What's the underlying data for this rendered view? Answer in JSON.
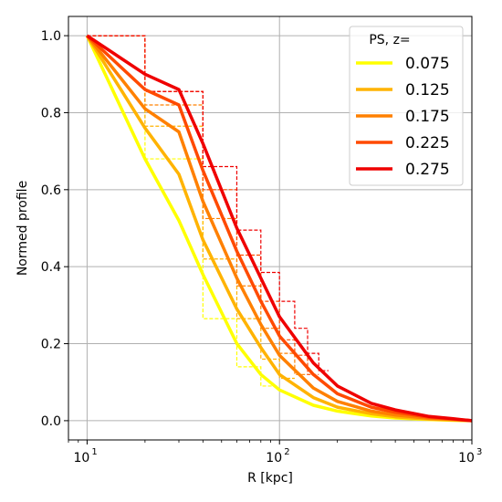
{
  "chart_data": {
    "type": "line",
    "title": "",
    "xlabel": "R [kpc]",
    "ylabel": "Normed profile",
    "xscale": "log",
    "xlim": [
      8,
      1000
    ],
    "ylim": [
      -0.05,
      1.05
    ],
    "grid": true,
    "x_ticks": [
      {
        "value": 10,
        "base": "10",
        "exp": "1"
      },
      {
        "value": 100,
        "base": "10",
        "exp": "2"
      },
      {
        "value": 1000,
        "base": "10",
        "exp": "3"
      }
    ],
    "y_ticks": [
      {
        "value": 0.0,
        "label": "0.0"
      },
      {
        "value": 0.2,
        "label": "0.2"
      },
      {
        "value": 0.4,
        "label": "0.4"
      },
      {
        "value": 0.6,
        "label": "0.6"
      },
      {
        "value": 0.8,
        "label": "0.8"
      },
      {
        "value": 1.0,
        "label": "1.0"
      }
    ],
    "legend": {
      "title": "PS, z=",
      "location": "upper right"
    },
    "series": [
      {
        "name": "0.075",
        "color": "#ffff00",
        "x": [
          10,
          20,
          30,
          40,
          60,
          80,
          100,
          150,
          200,
          300,
          400,
          600,
          800,
          1000
        ],
        "y": [
          1.0,
          0.68,
          0.52,
          0.38,
          0.2,
          0.12,
          0.08,
          0.04,
          0.025,
          0.012,
          0.007,
          0.003,
          0.001,
          0.0
        ]
      },
      {
        "name": "0.125",
        "color": "#ffb300",
        "x": [
          10,
          20,
          30,
          40,
          60,
          80,
          100,
          150,
          200,
          300,
          400,
          600,
          800,
          1000
        ],
        "y": [
          1.0,
          0.76,
          0.64,
          0.47,
          0.29,
          0.19,
          0.12,
          0.06,
          0.035,
          0.018,
          0.01,
          0.004,
          0.002,
          0.0
        ]
      },
      {
        "name": "0.175",
        "color": "#ff8000",
        "x": [
          10,
          20,
          30,
          40,
          60,
          80,
          100,
          150,
          200,
          300,
          400,
          600,
          800,
          1000
        ],
        "y": [
          1.0,
          0.81,
          0.75,
          0.57,
          0.37,
          0.25,
          0.17,
          0.085,
          0.05,
          0.025,
          0.015,
          0.006,
          0.003,
          0.0
        ]
      },
      {
        "name": "0.225",
        "color": "#ff4a00",
        "x": [
          10,
          20,
          30,
          40,
          60,
          80,
          100,
          150,
          200,
          300,
          400,
          600,
          800,
          1000
        ],
        "y": [
          1.0,
          0.86,
          0.82,
          0.65,
          0.44,
          0.31,
          0.22,
          0.12,
          0.07,
          0.035,
          0.022,
          0.009,
          0.004,
          0.0
        ]
      },
      {
        "name": "0.275",
        "color": "#ef0000",
        "x": [
          10,
          20,
          30,
          40,
          60,
          80,
          100,
          150,
          200,
          300,
          400,
          600,
          800,
          1000
        ],
        "y": [
          1.0,
          0.9,
          0.86,
          0.72,
          0.5,
          0.37,
          0.27,
          0.15,
          0.09,
          0.045,
          0.028,
          0.011,
          0.005,
          0.0
        ]
      }
    ],
    "step_bins": {
      "edges": [
        10,
        20,
        40,
        60,
        80,
        100,
        120,
        140,
        160,
        180
      ],
      "series": [
        {
          "name": "0.075",
          "values": [
            1.0,
            0.68,
            0.265,
            0.14,
            0.09
          ]
        },
        {
          "name": "0.125",
          "values": [
            1.0,
            0.765,
            0.42,
            0.265,
            0.16,
            0.11
          ]
        },
        {
          "name": "0.175",
          "values": [
            1.0,
            0.82,
            0.525,
            0.35,
            0.24,
            0.175,
            0.12
          ]
        },
        {
          "name": "0.225",
          "values": [
            1.0,
            0.855,
            0.6,
            0.43,
            0.31,
            0.21,
            0.17,
            0.12
          ]
        },
        {
          "name": "0.275",
          "values": [
            1.0,
            0.855,
            0.66,
            0.495,
            0.385,
            0.31,
            0.24,
            0.175,
            0.13
          ]
        }
      ]
    }
  }
}
